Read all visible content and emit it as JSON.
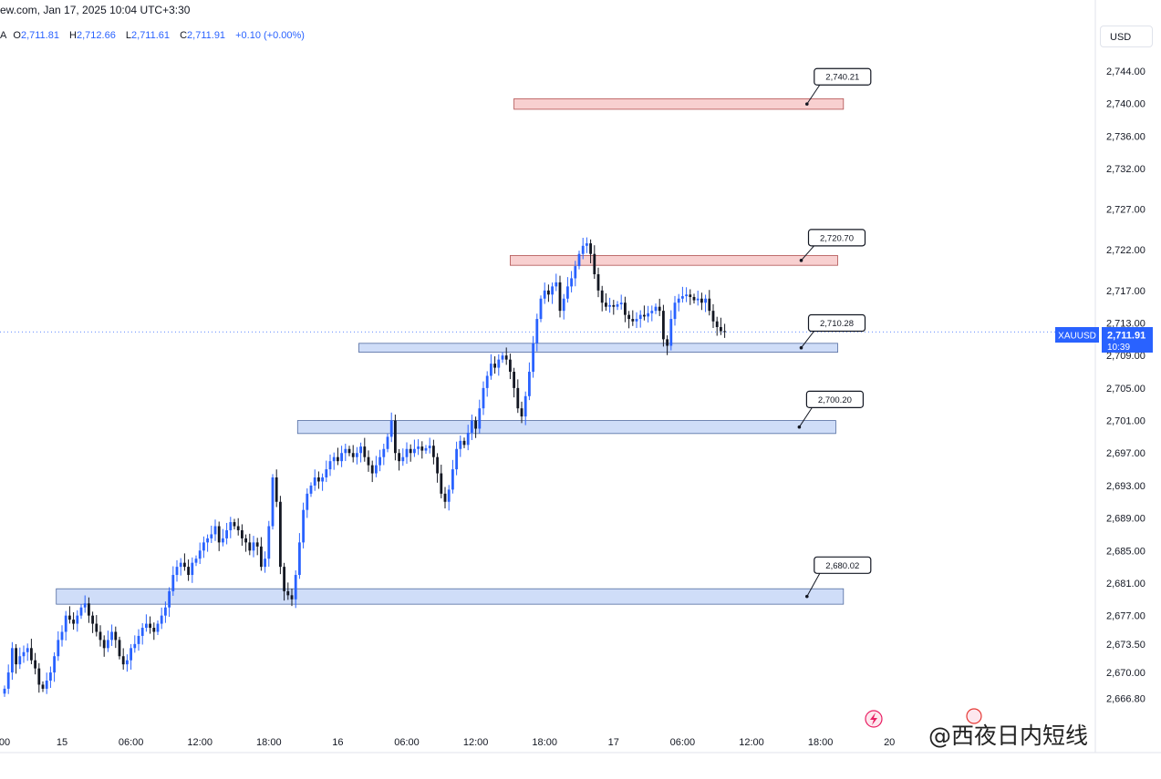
{
  "header": {
    "title": "ew.com, Jan 17, 2025 10:04 UTC+3:30"
  },
  "ohlc": {
    "prefix": "A",
    "open_label": "O",
    "open": "2,711.81",
    "high_label": "H",
    "high": "2,712.66",
    "low_label": "L",
    "low": "2,711.61",
    "close_label": "C",
    "close": "2,711.91",
    "change": "+0.10 (+0.00%)"
  },
  "currency_button": "USD",
  "price_tag": {
    "symbol": "XAUUSD",
    "price": "2,711.91",
    "countdown": "10:39"
  },
  "watermark": "@西夜日内短线",
  "colors": {
    "up": "#2962ff",
    "down": "#131722",
    "resistance_fill": "#f8d0d0",
    "support_fill": "#cfddf8",
    "tag": "#2962ff"
  },
  "chart_data": {
    "type": "candlestick",
    "ylim": [
      2664.5,
      2747.5
    ],
    "y_ticks": [
      "2,744.00",
      "2,740.00",
      "2,736.00",
      "2,732.00",
      "2,727.00",
      "2,722.00",
      "2,717.00",
      "2,713.00",
      "2,709.00",
      "2,705.00",
      "2,701.00",
      "2,697.00",
      "2,693.00",
      "2,689.00",
      "2,685.00",
      "2,681.00",
      "2,677.00",
      "2,673.50",
      "2,670.00",
      "2,666.80"
    ],
    "y_tick_values": [
      2744,
      2740,
      2736,
      2732,
      2727,
      2722,
      2717,
      2713,
      2709,
      2705,
      2701,
      2697,
      2693,
      2689,
      2685,
      2681,
      2677,
      2673.5,
      2670,
      2666.8
    ],
    "x_ticks": [
      {
        "label": "00",
        "t": 0
      },
      {
        "label": "15",
        "t": 15
      },
      {
        "label": "06:00",
        "t": 33
      },
      {
        "label": "12:00",
        "t": 51
      },
      {
        "label": "18:00",
        "t": 69
      },
      {
        "label": "16",
        "t": 87
      },
      {
        "label": "06:00",
        "t": 105
      },
      {
        "label": "12:00",
        "t": 123
      },
      {
        "label": "18:00",
        "t": 141
      },
      {
        "label": "17",
        "t": 159
      },
      {
        "label": "06:00",
        "t": 177
      },
      {
        "label": "12:00",
        "t": 195
      },
      {
        "label": "18:00",
        "t": 213
      },
      {
        "label": "20",
        "t": 231
      }
    ],
    "zones": [
      {
        "type": "resistance",
        "price_top": 2740.6,
        "price_bottom": 2739.3,
        "t_start": 133,
        "t_end": 219,
        "label": "2,740.21",
        "label_price": 2743.3
      },
      {
        "type": "resistance",
        "price_top": 2721.3,
        "price_bottom": 2720.1,
        "t_start": 132,
        "t_end": 217.5,
        "label": "2,720.70",
        "label_price": 2723.5
      },
      {
        "type": "support",
        "price_top": 2710.5,
        "price_bottom": 2709.4,
        "t_start": 92.5,
        "t_end": 217.5,
        "label": "2,710.28",
        "label_price": 2713.0
      },
      {
        "type": "support",
        "price_top": 2701.0,
        "price_bottom": 2699.4,
        "t_start": 76.5,
        "t_end": 217,
        "label": "2,700.20",
        "label_price": 2703.6
      },
      {
        "type": "support",
        "price_top": 2680.3,
        "price_bottom": 2678.4,
        "t_start": 13.5,
        "t_end": 219,
        "label": "2,680.02",
        "label_price": 2683.2
      }
    ],
    "current_price": 2711.91,
    "candle_t_start": 0,
    "candle_closes": [
      2668,
      2670,
      2673,
      2671,
      2672,
      2672.5,
      2673,
      2671.5,
      2670.5,
      2668.5,
      2668,
      2669,
      2670,
      2672,
      2674,
      2675,
      2677,
      2676.5,
      2676,
      2677,
      2678,
      2678.5,
      2677,
      2676,
      2675,
      2674,
      2673,
      2674,
      2675,
      2674,
      2672,
      2671,
      2671.5,
      2673,
      2673.5,
      2674.5,
      2675.5,
      2676,
      2675.5,
      2675,
      2676,
      2677,
      2678,
      2680,
      2682,
      2683,
      2683.5,
      2683,
      2682,
      2683.5,
      2684,
      2685,
      2686,
      2686.5,
      2687,
      2688,
      2686,
      2686.5,
      2687.5,
      2688.5,
      2688,
      2687.5,
      2686.5,
      2686,
      2685,
      2686,
      2685.5,
      2683,
      2684,
      2688,
      2694,
      2691,
      2683,
      2680,
      2679.5,
      2679,
      2682,
      2686,
      2690,
      2692,
      2693,
      2694,
      2693.5,
      2694,
      2695,
      2696,
      2696.5,
      2696,
      2697,
      2697.5,
      2697,
      2696.5,
      2697,
      2697.8,
      2696.5,
      2695.5,
      2694.5,
      2695.5,
      2696.5,
      2697.5,
      2699,
      2701,
      2697,
      2696,
      2696.5,
      2697.5,
      2697,
      2697.5,
      2697.8,
      2697.3,
      2697.6,
      2697.9,
      2696.5,
      2694.5,
      2692,
      2691,
      2692.5,
      2695,
      2697.5,
      2698.5,
      2698,
      2699.5,
      2701,
      2700,
      2702.5,
      2705,
      2706.5,
      2708,
      2707.5,
      2708.5,
      2709,
      2708.5,
      2707,
      2705,
      2702.5,
      2701.5,
      2704,
      2707,
      2710.5,
      2713.5,
      2716,
      2717,
      2716.5,
      2717.5,
      2718,
      2714.5,
      2716,
      2717.5,
      2718.5,
      2720,
      2721.5,
      2722.5,
      2722.8,
      2721.5,
      2719,
      2717,
      2715.5,
      2715,
      2715.2,
      2715,
      2715.3,
      2715.5,
      2714,
      2713.5,
      2713.2,
      2713.5,
      2714,
      2713.8,
      2714.2,
      2714.5,
      2715,
      2714.5,
      2711,
      2710.2,
      2713.5,
      2715.5,
      2716,
      2716.3,
      2716.5,
      2716.2,
      2715.8,
      2716,
      2715.5,
      2716,
      2714.5,
      2713.2,
      2712.5,
      2712,
      2711.9
    ]
  }
}
